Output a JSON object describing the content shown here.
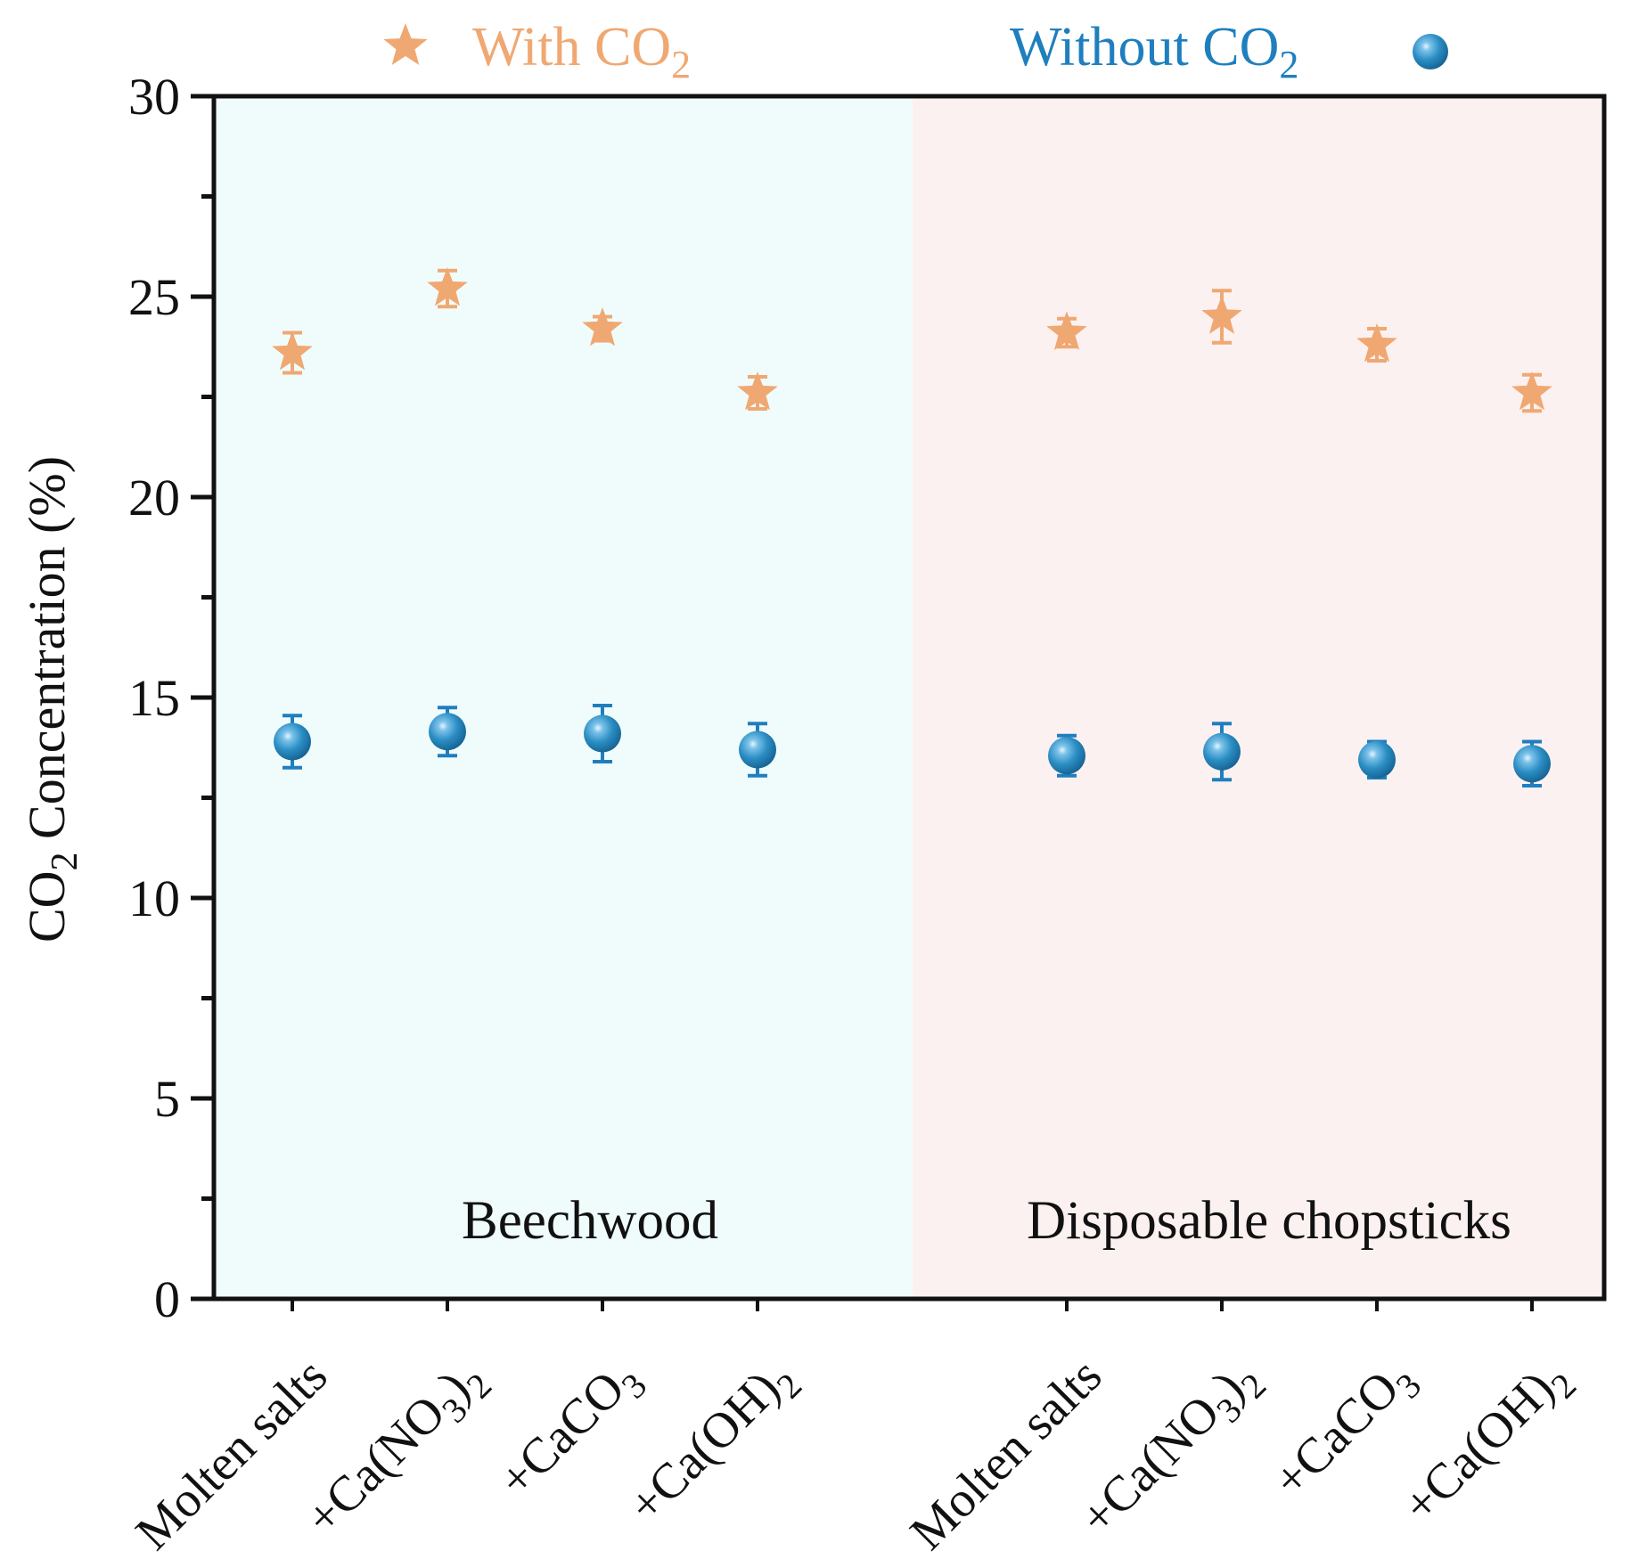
{
  "chart_data": {
    "type": "scatter",
    "ylabel": {
      "main": "CO",
      "sub": "2",
      "rest": " Concentration (%)"
    },
    "ylim": [
      0,
      30
    ],
    "yticks": [
      0,
      5,
      10,
      15,
      20,
      25,
      30
    ],
    "legend": {
      "with": {
        "main": "With CO",
        "sub": "2"
      },
      "without": {
        "main": "Without CO",
        "sub": "2"
      }
    },
    "categories": [
      {
        "main": "Molten salts",
        "sub": "",
        "tail": ""
      },
      {
        "main": "+Ca(NO",
        "sub": "3",
        "tail": ")",
        "sub2": "2"
      },
      {
        "main": "+CaCO",
        "sub": "3",
        "tail": ""
      },
      {
        "main": "+Ca(OH)",
        "sub": "2",
        "tail": ""
      },
      {
        "main": "Molten salts",
        "sub": "",
        "tail": ""
      },
      {
        "main": "+Ca(NO",
        "sub": "3",
        "tail": ")",
        "sub2": "2"
      },
      {
        "main": "+CaCO",
        "sub": "3",
        "tail": ""
      },
      {
        "main": "+Ca(OH)",
        "sub": "2",
        "tail": ""
      }
    ],
    "groups": [
      {
        "name": "Beechwood",
        "color": "#f0fcfc"
      },
      {
        "name": "Disposable chopsticks",
        "color": "#fcf1f1"
      }
    ],
    "series": [
      {
        "name": "With CO2",
        "marker": "star",
        "color": "#f0a872",
        "values": [
          23.6,
          25.2,
          24.2,
          22.6,
          24.1,
          24.5,
          23.8,
          22.6
        ],
        "errors": [
          0.5,
          0.45,
          0.3,
          0.4,
          0.35,
          0.65,
          0.4,
          0.45
        ]
      },
      {
        "name": "Without CO2",
        "marker": "circle",
        "color": "#2b8ec4",
        "values": [
          13.9,
          14.15,
          14.1,
          13.7,
          13.55,
          13.65,
          13.45,
          13.35
        ],
        "errors": [
          0.65,
          0.6,
          0.7,
          0.65,
          0.5,
          0.7,
          0.45,
          0.55
        ]
      }
    ]
  }
}
